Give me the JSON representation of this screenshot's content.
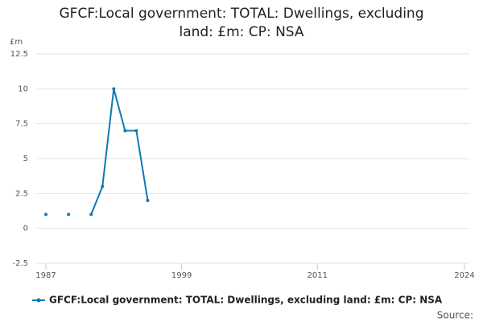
{
  "chart_data": {
    "type": "line",
    "title": "GFCF:Local government: TOTAL: Dwellings, excluding land: £m: CP: NSA",
    "y_label": "£m",
    "source_label": "Source:",
    "x": [
      1987,
      1988,
      1989,
      1990,
      1991,
      1992,
      1993,
      1994,
      1995,
      1996
    ],
    "series": [
      {
        "name": "GFCF:Local government: TOTAL: Dwellings, excluding land: £m: CP: NSA",
        "color": "#0e79b2",
        "values": [
          1,
          null,
          1,
          null,
          1,
          3,
          10,
          7,
          7,
          2
        ]
      }
    ],
    "xlim": [
      1987,
      2024
    ],
    "xticks": [
      1987,
      1999,
      2011,
      2024
    ],
    "ylim": [
      -2.5,
      12.5
    ],
    "yticks": [
      -2.5,
      0,
      2.5,
      5,
      7.5,
      10,
      12.5
    ],
    "grid": true
  }
}
